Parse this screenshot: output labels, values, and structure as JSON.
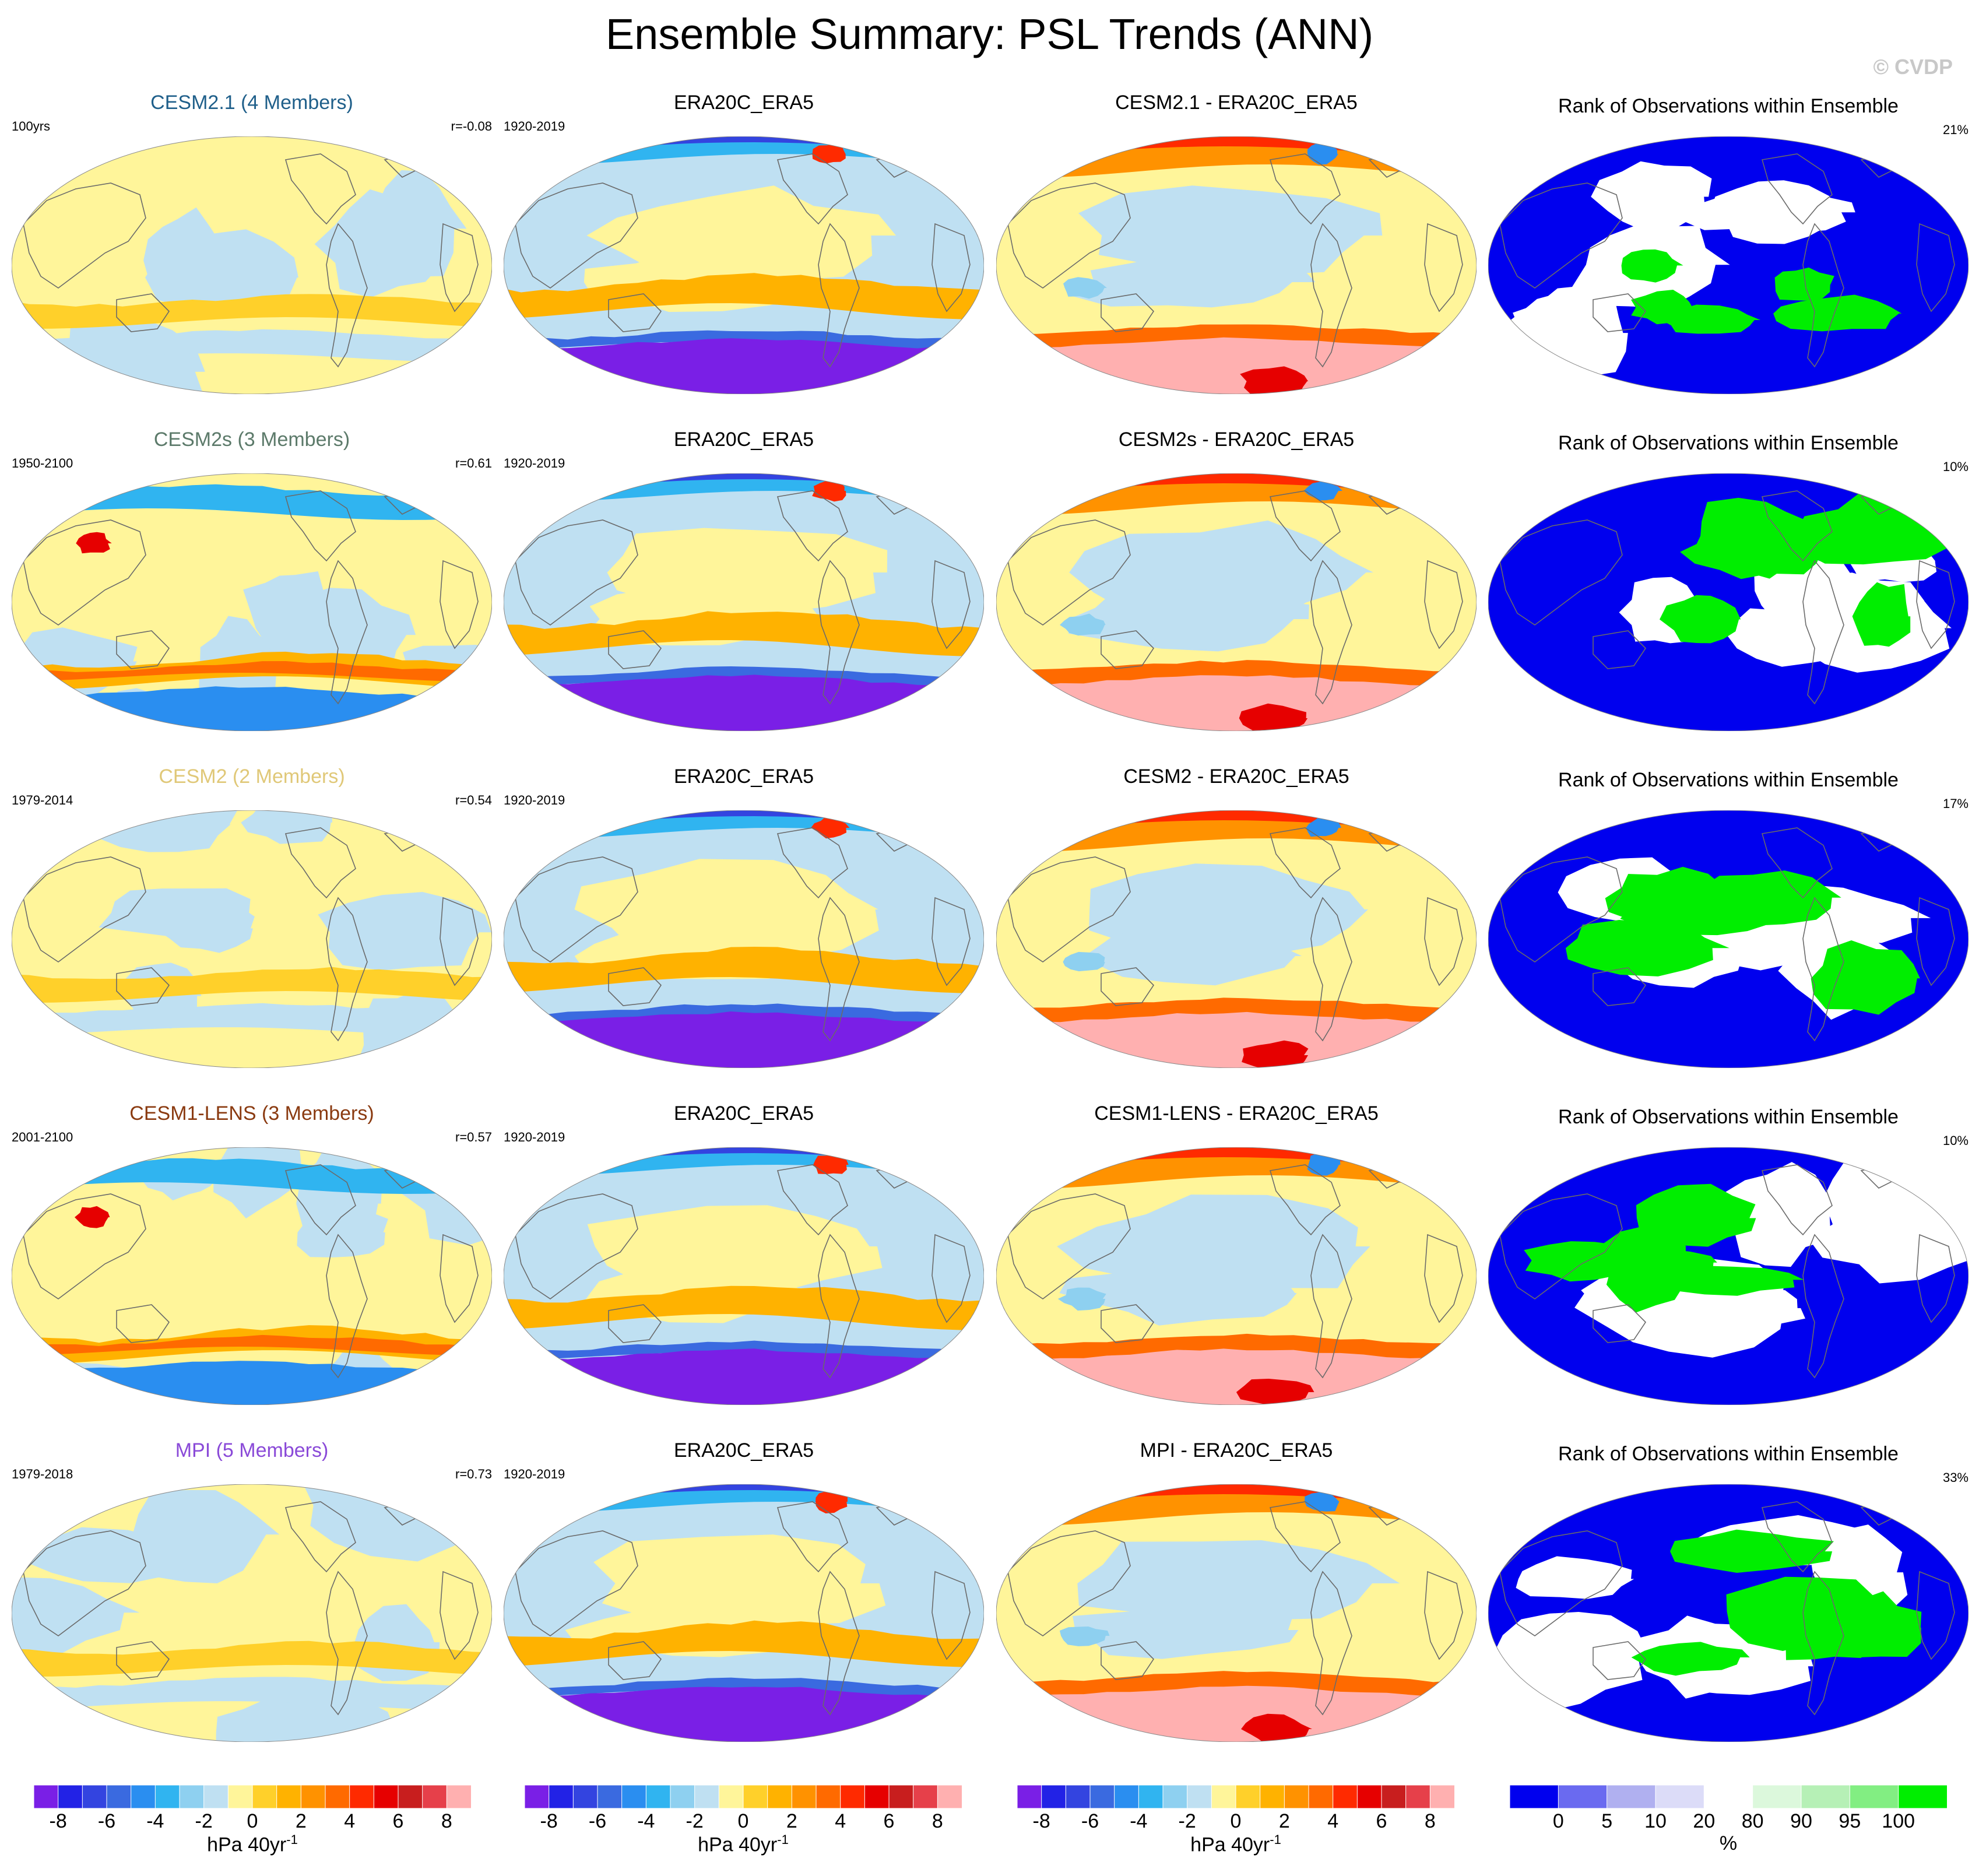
{
  "title": "Ensemble Summary: PSL Trends (ANN)",
  "watermark": "© CVDP",
  "rows": [
    {
      "model": {
        "title": "CESM2.1 (4 Members)",
        "title_color": "#1f5f8a",
        "left": "100yrs",
        "right": "r=-0.08"
      },
      "obs": {
        "title": "ERA20C_ERA5",
        "left": "1920-2019"
      },
      "diff": {
        "title": "CESM2.1 - ERA20C_ERA5"
      },
      "rank": {
        "title": "Rank of Observations within Ensemble",
        "right": "21%"
      }
    },
    {
      "model": {
        "title": "CESM2s (3 Members)",
        "title_color": "#5c7a6a",
        "left": "1950-2100",
        "right": "r=0.61"
      },
      "obs": {
        "title": "ERA20C_ERA5",
        "left": "1920-2019"
      },
      "diff": {
        "title": "CESM2s - ERA20C_ERA5"
      },
      "rank": {
        "title": "Rank of Observations within Ensemble",
        "right": "10%"
      }
    },
    {
      "model": {
        "title": "CESM2 (2 Members)",
        "title_color": "#e0c878",
        "left": "1979-2014",
        "right": "r=0.54"
      },
      "obs": {
        "title": "ERA20C_ERA5",
        "left": "1920-2019"
      },
      "diff": {
        "title": "CESM2 - ERA20C_ERA5"
      },
      "rank": {
        "title": "Rank of Observations within Ensemble",
        "right": "17%"
      }
    },
    {
      "model": {
        "title": "CESM1-LENS (3 Members)",
        "title_color": "#8a3a10",
        "left": "2001-2100",
        "right": "r=0.57"
      },
      "obs": {
        "title": "ERA20C_ERA5",
        "left": "1920-2019"
      },
      "diff": {
        "title": "CESM1-LENS - ERA20C_ERA5"
      },
      "rank": {
        "title": "Rank of Observations within Ensemble",
        "right": "10%"
      }
    },
    {
      "model": {
        "title": "MPI (5 Members)",
        "title_color": "#8a4ad8",
        "left": "1979-2018",
        "right": "r=0.73"
      },
      "obs": {
        "title": "ERA20C_ERA5",
        "left": "1920-2019"
      },
      "diff": {
        "title": "MPI - ERA20C_ERA5"
      },
      "rank": {
        "title": "Rank of Observations within Ensemble",
        "right": "33%"
      }
    }
  ],
  "colorbars": {
    "trend": {
      "colors": [
        "#7a1fe6",
        "#2222e6",
        "#3344e0",
        "#3a6ae0",
        "#2a8ef0",
        "#30b4f0",
        "#8ed0f0",
        "#bfe0f2",
        "#fff59a",
        "#ffd02a",
        "#ffb200",
        "#ff9200",
        "#ff6a00",
        "#ff2a00",
        "#e60000",
        "#c81e1e",
        "#e6404a",
        "#ffb0b0"
      ],
      "ticks": [
        "-8",
        "-6",
        "-4",
        "-2",
        "0",
        "2",
        "4",
        "6",
        "8"
      ],
      "unit": "hPa 40yr",
      "unit_sup": "-1"
    },
    "rank": {
      "colors": [
        "#0000ee",
        "#6a6af0",
        "#b0b0f0",
        "#dcdcf8",
        "#ffffff",
        "#dcf8dc",
        "#b6f0b6",
        "#82ee82",
        "#00ee00"
      ],
      "ticks": [
        "0",
        "5",
        "10",
        "20",
        "80",
        "90",
        "95",
        "100"
      ],
      "unit": "%"
    }
  }
}
